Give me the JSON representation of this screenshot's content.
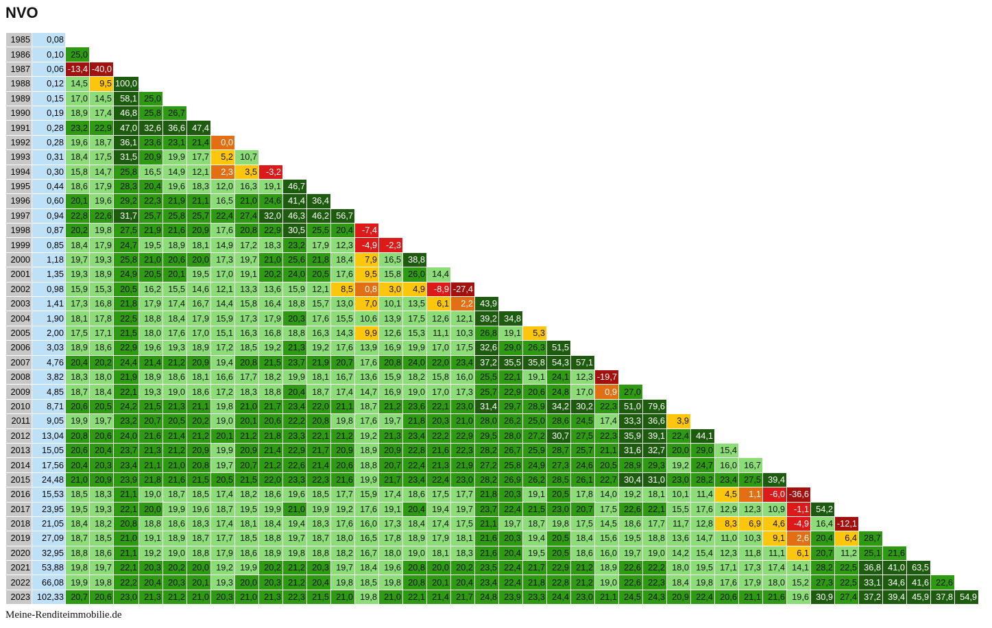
{
  "title": "NVO",
  "footer": "Meine-Renditeimmobilie.de",
  "colors": {
    "dark_green": "#1d5b0e",
    "green": "#2e9a12",
    "light_green": "#8cdc78",
    "yellow": "#fcc60d",
    "orange": "#e36f14",
    "red": "#dc1a1a",
    "dark_red": "#a3110f",
    "year_bg": "#c8c8c8",
    "price_bg": "#bfe1f7"
  },
  "chart_data": {
    "type": "table",
    "title": "NVO",
    "years": [
      "1985",
      "1986",
      "1987",
      "1988",
      "1989",
      "1990",
      "1991",
      "1992",
      "1993",
      "1994",
      "1995",
      "1996",
      "1997",
      "1998",
      "1999",
      "2000",
      "2001",
      "2002",
      "2003",
      "2004",
      "2005",
      "2006",
      "2007",
      "2008",
      "2009",
      "2010",
      "2011",
      "2012",
      "2013",
      "2014",
      "2015",
      "2016",
      "2017",
      "2018",
      "2019",
      "2020",
      "2021",
      "2022",
      "2023"
    ],
    "prices": [
      "0,08",
      "0,10",
      "0,06",
      "0,12",
      "0,15",
      "0,19",
      "0,28",
      "0,28",
      "0,31",
      "0,30",
      "0,44",
      "0,60",
      "0,94",
      "0,87",
      "0,85",
      "1,18",
      "1,35",
      "0,98",
      "1,41",
      "1,90",
      "2,00",
      "3,03",
      "4,76",
      "3,82",
      "4,85",
      "8,71",
      "9,05",
      "13,04",
      "15,05",
      "17,56",
      "24,48",
      "15,53",
      "23,95",
      "21,05",
      "27,09",
      "32,95",
      "53,88",
      "66,08",
      "102,33"
    ],
    "rows": [
      [],
      [
        "25,0"
      ],
      [
        "-13,4",
        "-40,0"
      ],
      [
        "14,5",
        "9,5",
        "100,0"
      ],
      [
        "17,0",
        "14,5",
        "58,1",
        "25,0"
      ],
      [
        "18,9",
        "17,4",
        "46,8",
        "25,8",
        "26,7"
      ],
      [
        "23,2",
        "22,9",
        "47,0",
        "32,6",
        "36,6",
        "47,4"
      ],
      [
        "19,6",
        "18,7",
        "36,1",
        "23,6",
        "23,1",
        "21,4",
        "0,0"
      ],
      [
        "18,4",
        "17,5",
        "31,5",
        "20,9",
        "19,9",
        "17,7",
        "5,2",
        "10,7"
      ],
      [
        "15,8",
        "14,7",
        "25,8",
        "16,5",
        "14,9",
        "12,1",
        "2,3",
        "3,5",
        "-3,2"
      ],
      [
        "18,6",
        "17,9",
        "28,3",
        "20,4",
        "19,6",
        "18,3",
        "12,0",
        "16,3",
        "19,1",
        "46,7"
      ],
      [
        "20,1",
        "19,6",
        "29,2",
        "22,3",
        "21,9",
        "21,1",
        "16,5",
        "21,0",
        "24,6",
        "41,4",
        "36,4"
      ],
      [
        "22,8",
        "22,6",
        "31,7",
        "25,7",
        "25,8",
        "25,7",
        "22,4",
        "27,4",
        "32,0",
        "46,3",
        "46,2",
        "56,7"
      ],
      [
        "20,2",
        "19,8",
        "27,5",
        "21,9",
        "21,6",
        "20,9",
        "17,6",
        "20,8",
        "22,9",
        "30,5",
        "25,5",
        "20,4",
        "-7,4"
      ],
      [
        "18,4",
        "17,9",
        "24,7",
        "19,5",
        "18,9",
        "18,1",
        "14,9",
        "17,2",
        "18,3",
        "23,2",
        "17,9",
        "12,3",
        "-4,9",
        "-2,3"
      ],
      [
        "19,7",
        "19,3",
        "25,8",
        "21,0",
        "20,6",
        "20,0",
        "17,3",
        "19,7",
        "21,0",
        "25,6",
        "21,8",
        "18,4",
        "7,9",
        "16,5",
        "38,8"
      ],
      [
        "19,3",
        "18,9",
        "24,9",
        "20,5",
        "20,1",
        "19,5",
        "17,0",
        "19,1",
        "20,2",
        "24,0",
        "20,5",
        "17,6",
        "9,5",
        "15,8",
        "26,0",
        "14,4"
      ],
      [
        "15,9",
        "15,3",
        "20,5",
        "16,2",
        "15,5",
        "14,6",
        "12,1",
        "13,3",
        "13,6",
        "15,9",
        "12,1",
        "8,5",
        "0,8",
        "3,0",
        "4,9",
        "-8,9",
        "-27,4"
      ],
      [
        "17,3",
        "16,8",
        "21,8",
        "17,9",
        "17,4",
        "16,7",
        "14,4",
        "15,8",
        "16,4",
        "18,8",
        "15,7",
        "13,0",
        "7,0",
        "10,1",
        "13,5",
        "6,1",
        "2,2",
        "43,9"
      ],
      [
        "18,1",
        "17,8",
        "22,5",
        "18,8",
        "18,4",
        "17,9",
        "15,9",
        "17,3",
        "17,9",
        "20,3",
        "17,6",
        "15,5",
        "10,6",
        "13,9",
        "17,5",
        "12,6",
        "12,1",
        "39,2",
        "34,8"
      ],
      [
        "17,5",
        "17,1",
        "21,5",
        "18,0",
        "17,6",
        "17,0",
        "15,1",
        "16,3",
        "16,8",
        "18,8",
        "16,3",
        "14,3",
        "9,9",
        "12,6",
        "15,3",
        "11,1",
        "10,3",
        "26,8",
        "19,1",
        "5,3"
      ],
      [
        "18,9",
        "18,6",
        "22,9",
        "19,6",
        "19,3",
        "18,9",
        "17,2",
        "18,5",
        "19,2",
        "21,3",
        "19,2",
        "17,6",
        "13,9",
        "16,9",
        "19,9",
        "17,0",
        "17,5",
        "32,6",
        "29,0",
        "26,3",
        "51,5"
      ],
      [
        "20,4",
        "20,2",
        "24,4",
        "21,4",
        "21,2",
        "20,9",
        "19,4",
        "20,8",
        "21,5",
        "23,7",
        "21,9",
        "20,7",
        "17,6",
        "20,8",
        "24,0",
        "22,0",
        "23,4",
        "37,2",
        "35,5",
        "35,8",
        "54,3",
        "57,1"
      ],
      [
        "18,3",
        "18,0",
        "21,9",
        "18,9",
        "18,6",
        "18,1",
        "16,6",
        "17,7",
        "18,2",
        "19,9",
        "18,1",
        "16,7",
        "13,6",
        "15,9",
        "18,2",
        "15,8",
        "16,0",
        "25,5",
        "22,1",
        "19,1",
        "24,1",
        "12,3",
        "-19,7"
      ],
      [
        "18,7",
        "18,4",
        "22,1",
        "19,3",
        "19,0",
        "18,6",
        "17,2",
        "18,3",
        "18,8",
        "20,4",
        "18,7",
        "17,4",
        "14,7",
        "16,9",
        "19,0",
        "17,0",
        "17,3",
        "25,7",
        "22,9",
        "20,6",
        "24,8",
        "17,0",
        "0,9",
        "27,0"
      ],
      [
        "20,6",
        "20,5",
        "24,2",
        "21,5",
        "21,3",
        "21,1",
        "19,8",
        "21,0",
        "21,7",
        "23,4",
        "22,0",
        "21,1",
        "18,7",
        "21,2",
        "23,6",
        "22,1",
        "23,0",
        "31,4",
        "29,7",
        "28,9",
        "34,2",
        "30,2",
        "22,3",
        "51,0",
        "79,6"
      ],
      [
        "19,9",
        "19,7",
        "23,2",
        "20,7",
        "20,5",
        "20,2",
        "19,0",
        "20,1",
        "20,6",
        "22,2",
        "20,8",
        "19,8",
        "17,6",
        "19,7",
        "21,8",
        "20,3",
        "21,0",
        "28,0",
        "26,2",
        "25,0",
        "28,6",
        "24,5",
        "17,4",
        "33,3",
        "36,6",
        "3,9"
      ],
      [
        "20,8",
        "20,6",
        "24,0",
        "21,6",
        "21,4",
        "21,2",
        "20,1",
        "21,2",
        "21,8",
        "23,3",
        "22,1",
        "21,2",
        "19,2",
        "21,3",
        "23,4",
        "22,2",
        "22,9",
        "29,5",
        "28,0",
        "27,2",
        "30,7",
        "27,5",
        "22,3",
        "35,9",
        "39,1",
        "22,4",
        "44,1"
      ],
      [
        "20,6",
        "20,4",
        "23,7",
        "21,3",
        "21,2",
        "20,9",
        "19,9",
        "20,9",
        "21,4",
        "22,9",
        "21,7",
        "20,9",
        "18,9",
        "20,9",
        "22,8",
        "21,6",
        "22,3",
        "28,2",
        "26,7",
        "25,9",
        "28,7",
        "25,7",
        "21,1",
        "31,6",
        "32,7",
        "20,0",
        "29,0",
        "15,4"
      ],
      [
        "20,4",
        "20,3",
        "23,4",
        "21,1",
        "21,0",
        "20,8",
        "19,7",
        "20,7",
        "21,2",
        "22,6",
        "21,4",
        "20,6",
        "18,8",
        "20,7",
        "22,4",
        "21,3",
        "21,9",
        "27,2",
        "25,8",
        "24,9",
        "27,3",
        "24,6",
        "20,5",
        "28,9",
        "29,3",
        "19,2",
        "24,7",
        "16,0",
        "16,7"
      ],
      [
        "21,0",
        "20,9",
        "23,9",
        "21,8",
        "21,6",
        "21,5",
        "20,5",
        "21,5",
        "22,0",
        "23,3",
        "22,3",
        "21,6",
        "19,9",
        "21,7",
        "23,4",
        "22,4",
        "23,0",
        "28,2",
        "26,9",
        "26,2",
        "28,5",
        "26,1",
        "22,7",
        "30,4",
        "31,0",
        "23,0",
        "28,2",
        "23,4",
        "27,5",
        "39,4"
      ],
      [
        "18,5",
        "18,3",
        "21,1",
        "19,0",
        "18,7",
        "18,5",
        "17,4",
        "18,2",
        "18,6",
        "19,6",
        "18,5",
        "17,7",
        "15,9",
        "17,4",
        "18,6",
        "17,5",
        "17,7",
        "21,8",
        "20,3",
        "19,1",
        "20,5",
        "17,8",
        "14,0",
        "19,2",
        "18,1",
        "10,1",
        "11,4",
        "4,5",
        "1,1",
        "-6,0",
        "-36,6"
      ],
      [
        "19,5",
        "19,3",
        "22,1",
        "20,0",
        "19,9",
        "19,6",
        "18,7",
        "19,5",
        "19,9",
        "21,0",
        "19,9",
        "19,2",
        "17,6",
        "19,1",
        "20,4",
        "19,4",
        "19,7",
        "23,7",
        "22,4",
        "21,5",
        "23,0",
        "20,7",
        "17,5",
        "22,6",
        "22,1",
        "15,5",
        "17,6",
        "12,9",
        "12,3",
        "10,9",
        "-1,1",
        "54,2"
      ],
      [
        "18,4",
        "18,2",
        "20,8",
        "18,8",
        "18,6",
        "18,3",
        "17,4",
        "18,1",
        "18,4",
        "19,4",
        "18,3",
        "17,6",
        "16,0",
        "17,3",
        "18,4",
        "17,4",
        "17,5",
        "21,1",
        "19,7",
        "18,7",
        "19,8",
        "17,5",
        "14,5",
        "18,6",
        "17,7",
        "11,7",
        "12,8",
        "8,3",
        "6,9",
        "4,6",
        "-4,9",
        "16,4",
        "-12,1"
      ],
      [
        "18,7",
        "18,5",
        "21,0",
        "19,1",
        "18,9",
        "18,7",
        "17,7",
        "18,5",
        "18,8",
        "19,7",
        "18,7",
        "18,0",
        "16,5",
        "17,8",
        "18,9",
        "17,9",
        "18,1",
        "21,6",
        "20,3",
        "19,4",
        "20,5",
        "18,4",
        "15,6",
        "19,5",
        "18,8",
        "13,6",
        "14,7",
        "11,0",
        "10,3",
        "9,1",
        "2,6",
        "20,4",
        "6,4",
        "28,7"
      ],
      [
        "18,8",
        "18,6",
        "21,1",
        "19,2",
        "19,0",
        "18,8",
        "17,9",
        "18,6",
        "18,9",
        "19,8",
        "18,8",
        "18,2",
        "16,7",
        "18,0",
        "19,0",
        "18,1",
        "18,3",
        "21,6",
        "20,4",
        "19,5",
        "20,5",
        "18,6",
        "16,0",
        "19,7",
        "19,0",
        "14,2",
        "15,4",
        "12,3",
        "11,8",
        "11,1",
        "6,1",
        "20,7",
        "11,2",
        "25,1",
        "21,6"
      ],
      [
        "19,8",
        "19,7",
        "22,1",
        "20,3",
        "20,2",
        "20,0",
        "19,2",
        "19,9",
        "20,2",
        "21,2",
        "20,3",
        "19,7",
        "18,4",
        "19,6",
        "20,8",
        "20,0",
        "20,2",
        "23,5",
        "22,4",
        "21,7",
        "22,9",
        "21,2",
        "18,9",
        "22,6",
        "22,2",
        "18,0",
        "19,5",
        "17,1",
        "17,3",
        "17,4",
        "14,1",
        "28,2",
        "22,5",
        "36,8",
        "41,0",
        "63,5"
      ],
      [
        "19,9",
        "19,8",
        "22,2",
        "20,4",
        "20,3",
        "20,1",
        "19,3",
        "20,0",
        "20,3",
        "21,2",
        "20,4",
        "19,8",
        "18,5",
        "19,8",
        "20,8",
        "20,1",
        "20,4",
        "23,4",
        "22,4",
        "21,8",
        "22,8",
        "21,2",
        "19,0",
        "22,6",
        "22,3",
        "18,4",
        "19,8",
        "17,6",
        "17,9",
        "18,0",
        "15,2",
        "27,3",
        "22,5",
        "33,1",
        "34,6",
        "41,6",
        "22,6"
      ],
      [
        "20,7",
        "20,6",
        "23,0",
        "21,3",
        "21,2",
        "21,0",
        "20,3",
        "21,0",
        "21,3",
        "22,3",
        "21,5",
        "21,0",
        "19,8",
        "21,0",
        "22,1",
        "21,4",
        "21,7",
        "24,8",
        "23,9",
        "23,3",
        "24,4",
        "23,0",
        "21,1",
        "24,5",
        "24,3",
        "20,9",
        "22,4",
        "20,6",
        "21,1",
        "21,6",
        "19,6",
        "30,9",
        "27,4",
        "37,2",
        "39,4",
        "45,9",
        "37,8",
        "54,9"
      ]
    ]
  }
}
